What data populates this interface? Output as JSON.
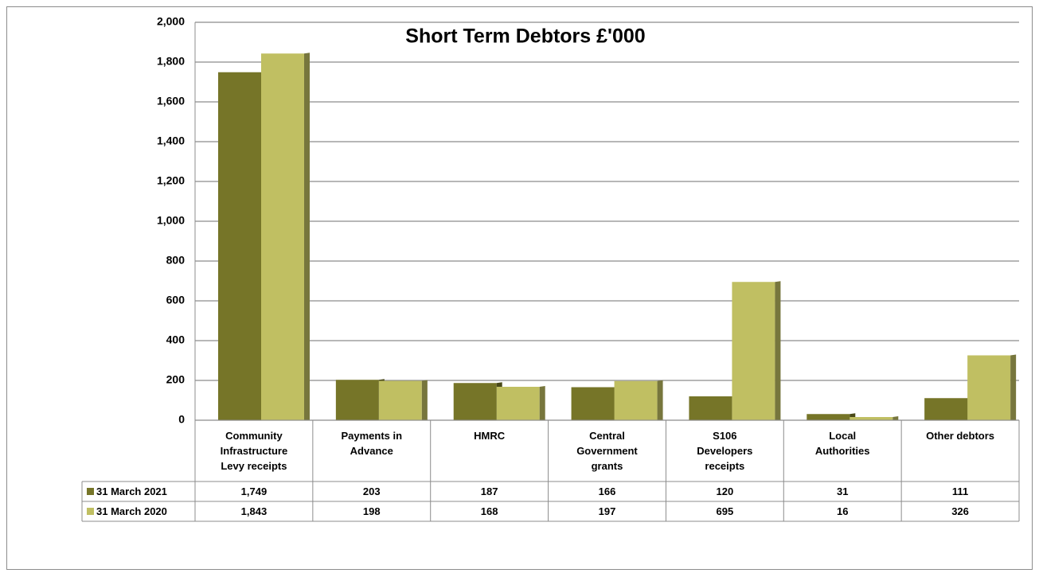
{
  "chart_data": {
    "type": "bar",
    "title": "Short Term Debtors £'000",
    "categories": [
      "Community Infrastructure Levy receipts",
      "Payments in Advance",
      "HMRC",
      "Central Government grants",
      "S106 Developers receipts",
      "Local Authorities",
      "Other debtors"
    ],
    "series": [
      {
        "name": "31 March 2021",
        "color": "#767528",
        "values": [
          1749,
          203,
          187,
          166,
          120,
          31,
          111
        ],
        "value_labels": [
          "1,749",
          "203",
          "187",
          "166",
          "120",
          "31",
          "111"
        ]
      },
      {
        "name": "31 March 2020",
        "color": "#c0bf62",
        "values": [
          1843,
          198,
          168,
          197,
          695,
          16,
          326
        ],
        "value_labels": [
          "1,843",
          "198",
          "168",
          "197",
          "695",
          "16",
          "326"
        ]
      }
    ],
    "ylim": [
      0,
      2000
    ],
    "yticks": [
      0,
      200,
      400,
      600,
      800,
      {
        "value": 1000,
        "label": "1,000"
      },
      {
        "value": 1200,
        "label": "1,200"
      },
      {
        "value": 1400,
        "label": "1,400"
      },
      {
        "value": 1600,
        "label": "1,600"
      },
      {
        "value": 1800,
        "label": "1,800"
      },
      {
        "value": 2000,
        "label": "2,000"
      }
    ],
    "grid": true
  }
}
